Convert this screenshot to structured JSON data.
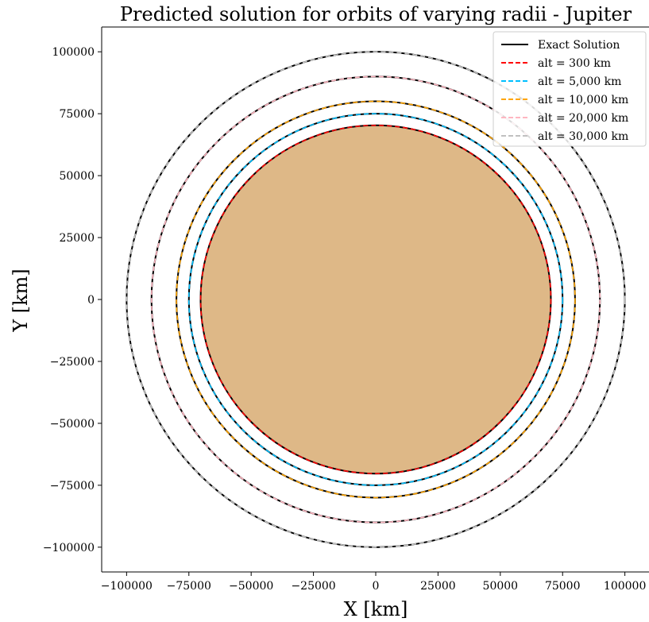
{
  "chart_data": {
    "type": "line",
    "title": "Predicted solution for orbits of varying radii - Jupiter",
    "xlabel": "X [km]",
    "ylabel": "Y [km]",
    "xlim": [
      -110000,
      110000
    ],
    "ylim": [
      -110000,
      110000
    ],
    "x_ticks": [
      -100000,
      -75000,
      -50000,
      -25000,
      0,
      25000,
      50000,
      75000,
      100000
    ],
    "y_ticks": [
      -100000,
      -75000,
      -50000,
      -25000,
      0,
      25000,
      50000,
      75000,
      100000
    ],
    "x_tick_labels": [
      "−100000",
      "−75000",
      "−50000",
      "−25000",
      "0",
      "25000",
      "50000",
      "75000",
      "100000"
    ],
    "y_tick_labels": [
      "−100000",
      "−75000",
      "−50000",
      "−25000",
      "0",
      "25000",
      "50000",
      "75000",
      "100000"
    ],
    "grid": false,
    "legend_position": "top-right",
    "planet": {
      "radius_km": 70000,
      "color": "#deb887"
    },
    "exact_solution": {
      "name": "Exact Solution",
      "color": "#000000",
      "style": "solid"
    },
    "series": [
      {
        "name": "alt = 300 km",
        "radius_km": 70300,
        "color": "#ff0000",
        "style": "dashed"
      },
      {
        "name": "alt = 5,000 km",
        "radius_km": 75000,
        "color": "#00bfff",
        "style": "dashed"
      },
      {
        "name": "alt = 10,000 km",
        "radius_km": 80000,
        "color": "#ffa500",
        "style": "dashed"
      },
      {
        "name": "alt = 20,000 km",
        "radius_km": 90000,
        "color": "#ffb6c1",
        "style": "dashed"
      },
      {
        "name": "alt = 30,000 km",
        "radius_km": 100000,
        "color": "#c0c0c0",
        "style": "dashed"
      }
    ]
  }
}
